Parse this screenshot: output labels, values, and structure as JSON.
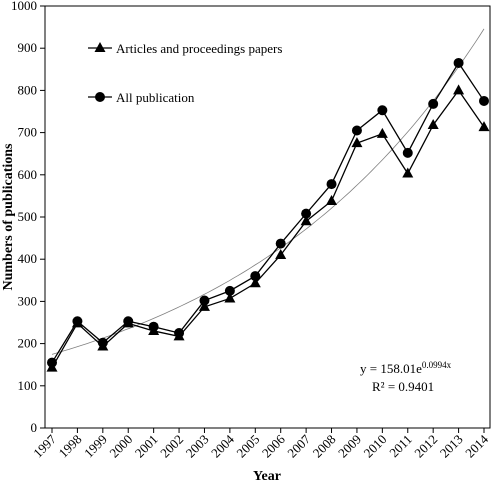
{
  "chart_data": {
    "type": "line",
    "x_label": "Year",
    "y_label": "Numbers of publications",
    "categories": [
      "1997",
      "1998",
      "1999",
      "2000",
      "2001",
      "2002",
      "2003",
      "2004",
      "2005",
      "2006",
      "2007",
      "2008",
      "2009",
      "2010",
      "2011",
      "2012",
      "2013",
      "2014"
    ],
    "series": [
      {
        "name": "Articles and proceedings papers",
        "color": "#000000",
        "marker": "triangle",
        "values": [
          143,
          248,
          193,
          248,
          230,
          217,
          287,
          307,
          343,
          410,
          490,
          538,
          675,
          697,
          603,
          718,
          800,
          713
        ]
      },
      {
        "name": "All publication",
        "color": "#000000",
        "marker": "circle",
        "values": [
          155,
          253,
          202,
          253,
          240,
          225,
          302,
          325,
          360,
          437,
          508,
          578,
          705,
          753,
          652,
          768,
          865,
          775
        ]
      }
    ],
    "trendline": {
      "coefficient": 158.01,
      "rate": 0.0994,
      "color": "#808080"
    },
    "annotation": {
      "equation": "y = 158.01e",
      "exponent": "0.0994x",
      "r_squared": "R² = 0.9401"
    },
    "ylim": [
      0,
      1000
    ],
    "yticks": [
      0,
      100,
      200,
      300,
      400,
      500,
      600,
      700,
      800,
      900,
      1000
    ],
    "legend": "top-left"
  }
}
